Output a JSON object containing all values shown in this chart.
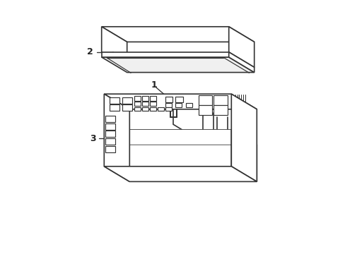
{
  "bg_color": "#ffffff",
  "line_color": "#333333",
  "line_width": 1.2,
  "label_color": "#222222",
  "label_fontsize": 9
}
